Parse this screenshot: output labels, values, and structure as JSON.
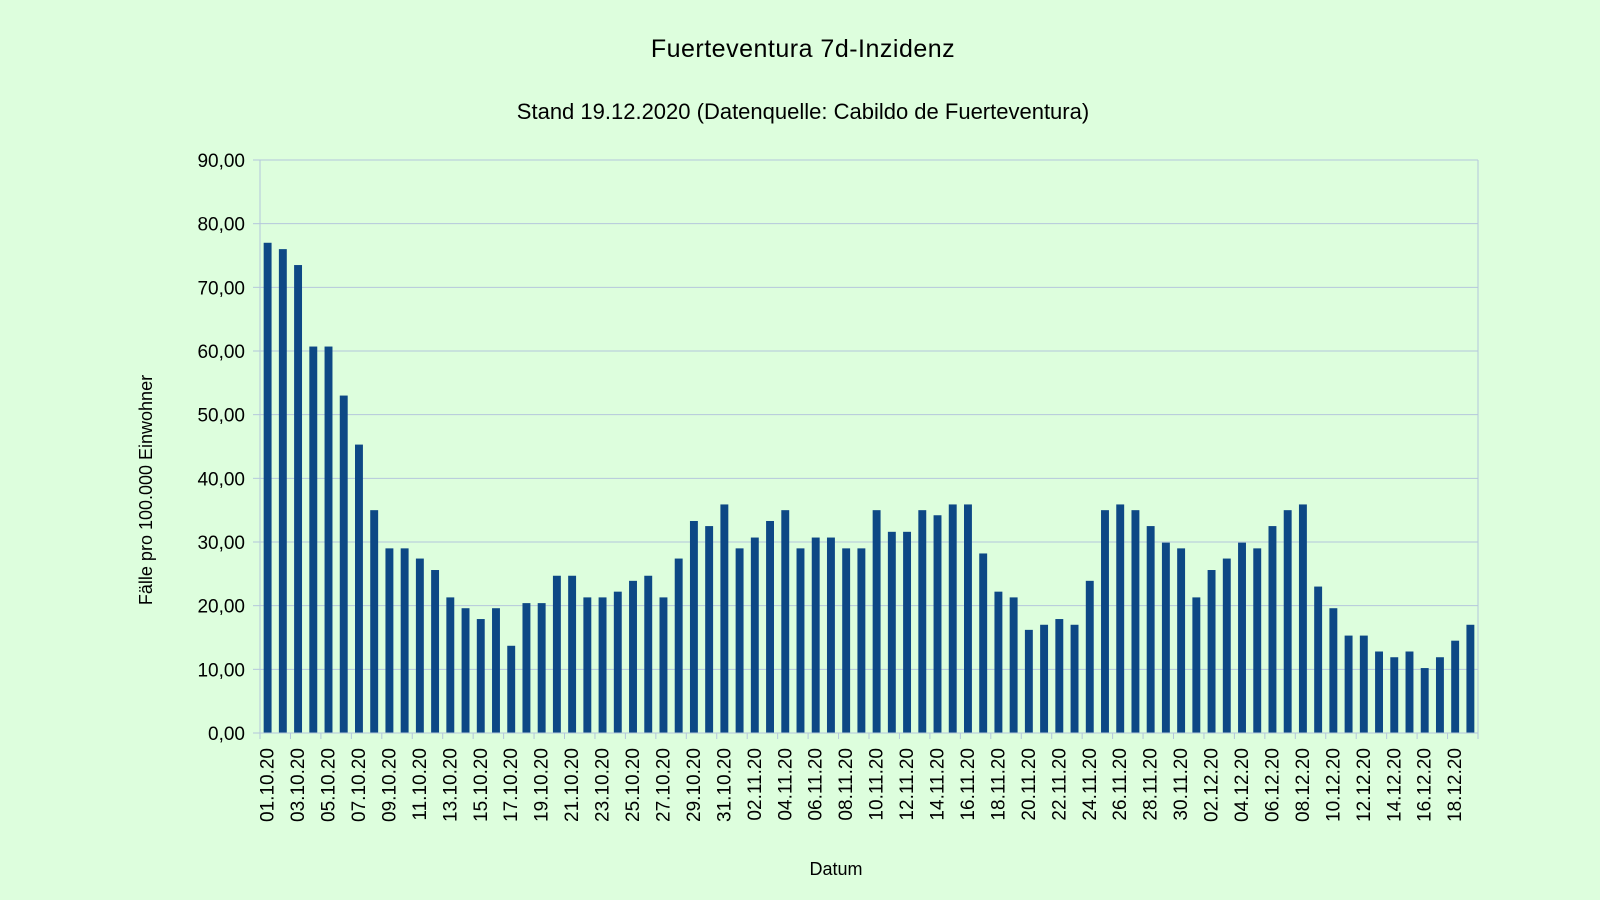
{
  "chart_data": {
    "type": "bar",
    "title": "Fuerteventura 7d-Inzidenz",
    "subtitle": "Stand 19.12.2020 (Datenquelle: Cabildo de Fuerteventura)",
    "xlabel": "Datum",
    "ylabel": "Fälle pro 100.000 Einwohner",
    "ylim": [
      0,
      90
    ],
    "yticks": [
      "0,00",
      "10,00",
      "20,00",
      "30,00",
      "40,00",
      "50,00",
      "60,00",
      "70,00",
      "80,00",
      "90,00"
    ],
    "grid": true,
    "legend": "none",
    "bar_color": "#0d4885",
    "grid_color": "#b4c7dc",
    "background_color": "#ddfedd",
    "categories": [
      "01.10.20",
      "02.10.20",
      "03.10.20",
      "04.10.20",
      "05.10.20",
      "06.10.20",
      "07.10.20",
      "08.10.20",
      "09.10.20",
      "10.10.20",
      "11.10.20",
      "12.10.20",
      "13.10.20",
      "14.10.20",
      "15.10.20",
      "16.10.20",
      "17.10.20",
      "18.10.20",
      "19.10.20",
      "20.10.20",
      "21.10.20",
      "22.10.20",
      "23.10.20",
      "24.10.20",
      "25.10.20",
      "26.10.20",
      "27.10.20",
      "28.10.20",
      "29.10.20",
      "30.10.20",
      "31.10.20",
      "01.11.20",
      "02.11.20",
      "03.11.20",
      "04.11.20",
      "05.11.20",
      "06.11.20",
      "07.11.20",
      "08.11.20",
      "09.11.20",
      "10.11.20",
      "11.11.20",
      "12.11.20",
      "13.11.20",
      "14.11.20",
      "15.11.20",
      "16.11.20",
      "17.11.20",
      "18.11.20",
      "19.11.20",
      "20.11.20",
      "21.11.20",
      "22.11.20",
      "23.11.20",
      "24.11.20",
      "25.11.20",
      "26.11.20",
      "27.11.20",
      "28.11.20",
      "29.11.20",
      "30.11.20",
      "01.12.20",
      "02.12.20",
      "03.12.20",
      "04.12.20",
      "05.12.20",
      "06.12.20",
      "07.12.20",
      "08.12.20",
      "09.12.20",
      "10.12.20",
      "11.12.20",
      "12.12.20",
      "13.12.20",
      "14.12.20",
      "15.12.20",
      "16.12.20",
      "17.12.20",
      "18.12.20",
      "19.12.20"
    ],
    "visible_xtick_labels": [
      "01.10.20",
      "03.10.20",
      "05.10.20",
      "07.10.20",
      "09.10.20",
      "11.10.20",
      "13.10.20",
      "15.10.20",
      "17.10.20",
      "19.10.20",
      "21.10.20",
      "23.10.20",
      "25.10.20",
      "27.10.20",
      "29.10.20",
      "31.10.20",
      "02.11.20",
      "04.11.20",
      "06.11.20",
      "08.11.20",
      "10.11.20",
      "12.11.20",
      "14.11.20",
      "16.11.20",
      "18.11.20",
      "20.11.20",
      "22.11.20",
      "24.11.20",
      "26.11.20",
      "28.11.20",
      "30.11.20",
      "02.12.20",
      "04.12.20",
      "06.12.20",
      "08.12.20",
      "10.12.20",
      "12.12.20",
      "14.12.20",
      "16.12.20",
      "18.12.20"
    ],
    "values": [
      77.0,
      76.0,
      73.5,
      60.7,
      60.7,
      53.0,
      45.3,
      35.0,
      29.0,
      29.0,
      27.4,
      25.6,
      21.3,
      19.6,
      17.9,
      19.6,
      13.7,
      20.4,
      20.4,
      24.7,
      24.7,
      21.3,
      21.3,
      22.2,
      23.9,
      24.7,
      21.3,
      27.4,
      33.3,
      32.5,
      35.9,
      29.0,
      30.7,
      33.3,
      35.0,
      29.0,
      30.7,
      30.7,
      29.0,
      29.0,
      35.0,
      31.6,
      31.6,
      35.0,
      34.2,
      35.9,
      35.9,
      28.2,
      22.2,
      21.3,
      16.2,
      17.0,
      17.9,
      17.0,
      23.9,
      35.0,
      35.9,
      35.0,
      32.5,
      29.9,
      29.0,
      21.3,
      25.6,
      27.4,
      29.9,
      29.0,
      32.5,
      35.0,
      35.9,
      23.0,
      19.6,
      15.3,
      15.3,
      12.8,
      11.9,
      12.8,
      10.2,
      11.9,
      14.5,
      17.0
    ]
  }
}
